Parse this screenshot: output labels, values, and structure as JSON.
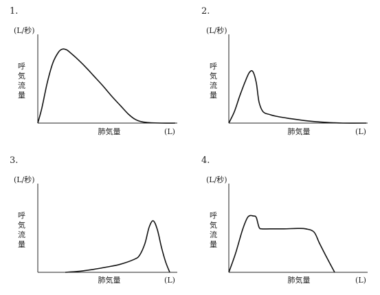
{
  "chart_data": [
    {
      "type": "line",
      "number": "1.",
      "y_unit": "(L/秒)",
      "ylabel": "呼気流量",
      "xlabel": "肺気量",
      "x_unit": "(L)",
      "xlim": [
        0,
        10
      ],
      "ylim": [
        0,
        10
      ],
      "grid": false,
      "x": [
        0,
        0.3,
        0.7,
        1.1,
        1.5,
        1.8,
        2.1,
        2.4,
        2.8,
        3.4,
        4.0,
        4.7,
        5.4,
        6.0,
        6.6,
        7.1,
        7.6,
        8.2,
        9.0,
        10.0
      ],
      "y": [
        0,
        1.9,
        5.1,
        7.5,
        8.8,
        9.2,
        9.1,
        8.7,
        8.1,
        7.1,
        6.0,
        4.7,
        3.3,
        2.2,
        1.1,
        0.45,
        0.15,
        0.04,
        0.0,
        0.0
      ]
    },
    {
      "type": "line",
      "number": "2.",
      "y_unit": "(L/秒)",
      "ylabel": "呼気流量",
      "xlabel": "肺気量",
      "x_unit": "(L)",
      "xlim": [
        0,
        10
      ],
      "ylim": [
        0,
        10
      ],
      "grid": false,
      "x": [
        0,
        0.4,
        0.8,
        1.2,
        1.5,
        1.75,
        2.0,
        2.2,
        2.5,
        3.0,
        3.6,
        4.5,
        5.5,
        6.5,
        7.5,
        8.3,
        10.0
      ],
      "y": [
        0,
        1.4,
        3.4,
        5.2,
        6.3,
        6.4,
        5.0,
        2.6,
        1.4,
        1.05,
        0.8,
        0.55,
        0.32,
        0.15,
        0.05,
        0.0,
        0.0
      ]
    },
    {
      "type": "line",
      "number": "3.",
      "y_unit": "(L/秒)",
      "ylabel": "呼気流量",
      "xlabel": "肺気量",
      "x_unit": "(L)",
      "xlim": [
        0,
        10
      ],
      "ylim": [
        0,
        10
      ],
      "grid": false,
      "x": [
        2.0,
        3.0,
        4.0,
        5.0,
        6.0,
        7.0,
        7.4,
        7.8,
        8.1,
        8.4,
        8.7,
        9.0,
        9.3,
        9.6
      ],
      "y": [
        0.0,
        0.12,
        0.35,
        0.65,
        1.0,
        1.6,
        2.1,
        3.6,
        5.6,
        6.4,
        5.3,
        3.1,
        1.3,
        0.0
      ]
    },
    {
      "type": "line",
      "number": "4.",
      "y_unit": "(L/秒)",
      "ylabel": "呼気流量",
      "xlabel": "肺気量",
      "x_unit": "(L)",
      "xlim": [
        0,
        10
      ],
      "ylim": [
        0,
        10
      ],
      "grid": false,
      "x": [
        0,
        0.5,
        1.0,
        1.4,
        1.8,
        2.0,
        2.2,
        2.4,
        3.0,
        4.0,
        5.0,
        5.6,
        6.2,
        6.6,
        7.2,
        7.7
      ],
      "y": [
        0,
        2.4,
        5.3,
        6.9,
        7.0,
        6.8,
        5.6,
        5.4,
        5.4,
        5.4,
        5.45,
        5.4,
        5.0,
        3.6,
        1.6,
        0.0
      ]
    }
  ]
}
